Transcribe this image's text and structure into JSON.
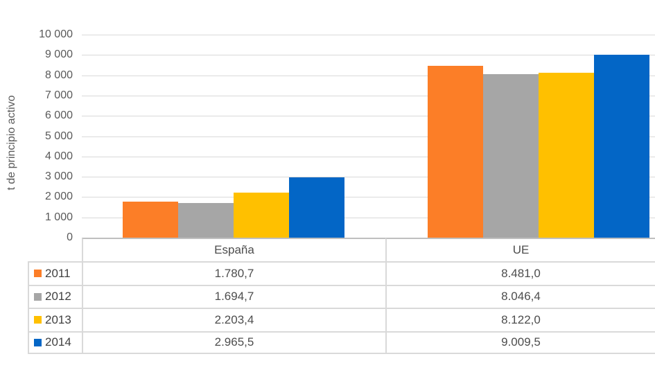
{
  "chart_data": {
    "type": "bar",
    "title": "",
    "ylabel": "t de principio activo",
    "xlabel": "",
    "categories": [
      "España",
      "UE"
    ],
    "series": [
      {
        "name": "2011",
        "color": "#FC7E27",
        "values": [
          1780.7,
          8481.0
        ]
      },
      {
        "name": "2012",
        "color": "#A6A6A6",
        "values": [
          1694.7,
          8046.4
        ]
      },
      {
        "name": "2013",
        "color": "#FFC000",
        "values": [
          2203.4,
          8122.0
        ]
      },
      {
        "name": "2014",
        "color": "#0366C6",
        "values": [
          2965.5,
          9009.5
        ]
      }
    ],
    "ylim": [
      0,
      10000
    ],
    "ytick_step": 1000,
    "ytick_labels": [
      "0",
      "1 000",
      "2 000",
      "3 000",
      "4 000",
      "5 000",
      "6 000",
      "7 000",
      "8 000",
      "9 000",
      "10 000"
    ],
    "grid": true,
    "legend_position": "table-left"
  },
  "table": {
    "col_headers": [
      "España",
      "UE"
    ],
    "rows": [
      {
        "year": "2011",
        "espana": "1.780,7",
        "ue": "8.481,0"
      },
      {
        "year": "2012",
        "espana": "1.694,7",
        "ue": "8.046,4"
      },
      {
        "year": "2013",
        "espana": "2.203,4",
        "ue": "8.122,0"
      },
      {
        "year": "2014",
        "espana": "2.965,5",
        "ue": "9.009,5"
      }
    ]
  },
  "colors": {
    "gridline": "#D9D9D9",
    "axis_line": "#BFBFBF",
    "text": "#595959"
  }
}
